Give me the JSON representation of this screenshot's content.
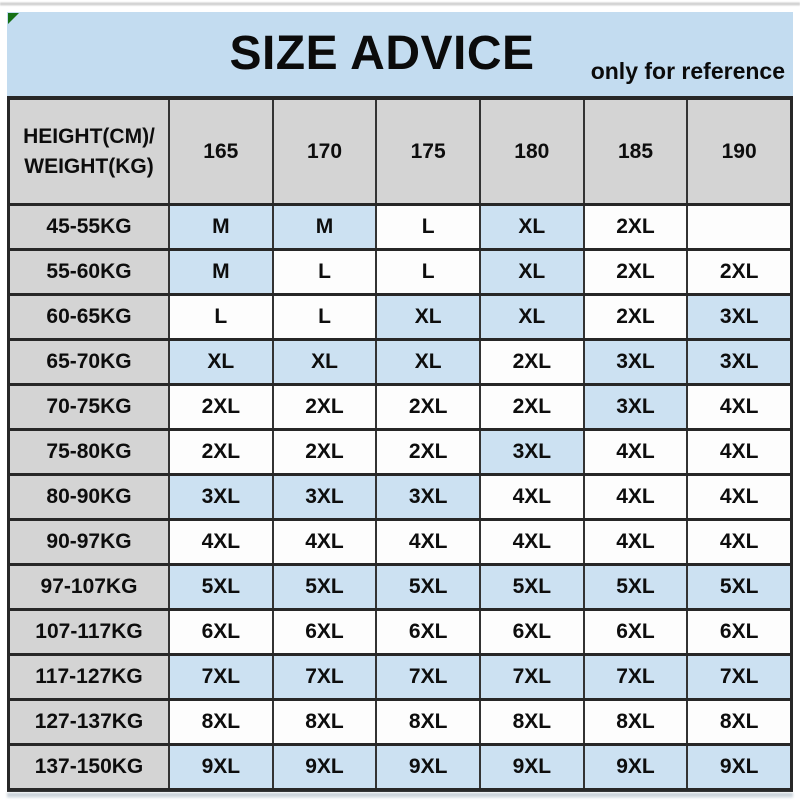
{
  "header": {
    "title": "SIZE ADVICE",
    "note": "only for reference",
    "corner_mark_icon": "green-triangle-mark"
  },
  "table": {
    "corner_label_line1": "HEIGHT(CM)/",
    "corner_label_line2": "WEIGHT(KG)",
    "columns": [
      "165",
      "170",
      "175",
      "180",
      "185",
      "190"
    ],
    "rows": [
      {
        "label": "45-55KG",
        "cells": [
          {
            "v": "M",
            "hl": true
          },
          {
            "v": "M",
            "hl": true
          },
          {
            "v": "L",
            "hl": false
          },
          {
            "v": "XL",
            "hl": true
          },
          {
            "v": "2XL",
            "hl": false
          },
          {
            "v": "",
            "hl": false
          }
        ]
      },
      {
        "label": "55-60KG",
        "cells": [
          {
            "v": "M",
            "hl": true
          },
          {
            "v": "L",
            "hl": false
          },
          {
            "v": "L",
            "hl": false
          },
          {
            "v": "XL",
            "hl": true
          },
          {
            "v": "2XL",
            "hl": false
          },
          {
            "v": "2XL",
            "hl": false
          }
        ]
      },
      {
        "label": "60-65KG",
        "cells": [
          {
            "v": "L",
            "hl": false
          },
          {
            "v": "L",
            "hl": false
          },
          {
            "v": "XL",
            "hl": true
          },
          {
            "v": "XL",
            "hl": true
          },
          {
            "v": "2XL",
            "hl": false
          },
          {
            "v": "3XL",
            "hl": true
          }
        ]
      },
      {
        "label": "65-70KG",
        "cells": [
          {
            "v": "XL",
            "hl": true
          },
          {
            "v": "XL",
            "hl": true
          },
          {
            "v": "XL",
            "hl": true
          },
          {
            "v": "2XL",
            "hl": false
          },
          {
            "v": "3XL",
            "hl": true
          },
          {
            "v": "3XL",
            "hl": true
          }
        ]
      },
      {
        "label": "70-75KG",
        "cells": [
          {
            "v": "2XL",
            "hl": false
          },
          {
            "v": "2XL",
            "hl": false
          },
          {
            "v": "2XL",
            "hl": false
          },
          {
            "v": "2XL",
            "hl": false
          },
          {
            "v": "3XL",
            "hl": true
          },
          {
            "v": "4XL",
            "hl": false
          }
        ]
      },
      {
        "label": "75-80KG",
        "cells": [
          {
            "v": "2XL",
            "hl": false
          },
          {
            "v": "2XL",
            "hl": false
          },
          {
            "v": "2XL",
            "hl": false
          },
          {
            "v": "3XL",
            "hl": true
          },
          {
            "v": "4XL",
            "hl": false
          },
          {
            "v": "4XL",
            "hl": false
          }
        ]
      },
      {
        "label": "80-90KG",
        "cells": [
          {
            "v": "3XL",
            "hl": true
          },
          {
            "v": "3XL",
            "hl": true
          },
          {
            "v": "3XL",
            "hl": true
          },
          {
            "v": "4XL",
            "hl": false
          },
          {
            "v": "4XL",
            "hl": false
          },
          {
            "v": "4XL",
            "hl": false
          }
        ]
      },
      {
        "label": "90-97KG",
        "cells": [
          {
            "v": "4XL",
            "hl": false
          },
          {
            "v": "4XL",
            "hl": false
          },
          {
            "v": "4XL",
            "hl": false
          },
          {
            "v": "4XL",
            "hl": false
          },
          {
            "v": "4XL",
            "hl": false
          },
          {
            "v": "4XL",
            "hl": false
          }
        ]
      },
      {
        "label": "97-107KG",
        "cells": [
          {
            "v": "5XL",
            "hl": true
          },
          {
            "v": "5XL",
            "hl": true
          },
          {
            "v": "5XL",
            "hl": true
          },
          {
            "v": "5XL",
            "hl": true
          },
          {
            "v": "5XL",
            "hl": true
          },
          {
            "v": "5XL",
            "hl": true
          }
        ]
      },
      {
        "label": "107-117KG",
        "cells": [
          {
            "v": "6XL",
            "hl": false
          },
          {
            "v": "6XL",
            "hl": false
          },
          {
            "v": "6XL",
            "hl": false
          },
          {
            "v": "6XL",
            "hl": false
          },
          {
            "v": "6XL",
            "hl": false
          },
          {
            "v": "6XL",
            "hl": false
          }
        ]
      },
      {
        "label": "117-127KG",
        "cells": [
          {
            "v": "7XL",
            "hl": true
          },
          {
            "v": "7XL",
            "hl": true
          },
          {
            "v": "7XL",
            "hl": true
          },
          {
            "v": "7XL",
            "hl": true
          },
          {
            "v": "7XL",
            "hl": true
          },
          {
            "v": "7XL",
            "hl": true
          }
        ]
      },
      {
        "label": "127-137KG",
        "cells": [
          {
            "v": "8XL",
            "hl": false
          },
          {
            "v": "8XL",
            "hl": false
          },
          {
            "v": "8XL",
            "hl": false
          },
          {
            "v": "8XL",
            "hl": false
          },
          {
            "v": "8XL",
            "hl": false
          },
          {
            "v": "8XL",
            "hl": false
          }
        ]
      },
      {
        "label": "137-150KG",
        "cells": [
          {
            "v": "9XL",
            "hl": true
          },
          {
            "v": "9XL",
            "hl": true
          },
          {
            "v": "9XL",
            "hl": true
          },
          {
            "v": "9XL",
            "hl": true
          },
          {
            "v": "9XL",
            "hl": true
          },
          {
            "v": "9XL",
            "hl": true
          }
        ]
      }
    ]
  },
  "colors": {
    "band_blue": "#c3dcf0",
    "cell_highlight_blue": "#cce1f2",
    "header_gray": "#d4d4d4",
    "border_dark": "#272727",
    "corner_mark_green": "#156f15",
    "text": "#0d0d0d"
  },
  "chart_data": {
    "type": "table",
    "title": "SIZE ADVICE",
    "subtitle": "only for reference",
    "row_header": "HEIGHT(CM)/WEIGHT(KG)",
    "columns_height_cm": [
      165,
      170,
      175,
      180,
      185,
      190
    ],
    "rows": [
      {
        "weight_kg": "45-55KG",
        "sizes": [
          "M",
          "M",
          "L",
          "XL",
          "2XL",
          ""
        ]
      },
      {
        "weight_kg": "55-60KG",
        "sizes": [
          "M",
          "L",
          "L",
          "XL",
          "2XL",
          "2XL"
        ]
      },
      {
        "weight_kg": "60-65KG",
        "sizes": [
          "L",
          "L",
          "XL",
          "XL",
          "2XL",
          "3XL"
        ]
      },
      {
        "weight_kg": "65-70KG",
        "sizes": [
          "XL",
          "XL",
          "XL",
          "2XL",
          "3XL",
          "3XL"
        ]
      },
      {
        "weight_kg": "70-75KG",
        "sizes": [
          "2XL",
          "2XL",
          "2XL",
          "2XL",
          "3XL",
          "4XL"
        ]
      },
      {
        "weight_kg": "75-80KG",
        "sizes": [
          "2XL",
          "2XL",
          "2XL",
          "3XL",
          "4XL",
          "4XL"
        ]
      },
      {
        "weight_kg": "80-90KG",
        "sizes": [
          "3XL",
          "3XL",
          "3XL",
          "4XL",
          "4XL",
          "4XL"
        ]
      },
      {
        "weight_kg": "90-97KG",
        "sizes": [
          "4XL",
          "4XL",
          "4XL",
          "4XL",
          "4XL",
          "4XL"
        ]
      },
      {
        "weight_kg": "97-107KG",
        "sizes": [
          "5XL",
          "5XL",
          "5XL",
          "5XL",
          "5XL",
          "5XL"
        ]
      },
      {
        "weight_kg": "107-117KG",
        "sizes": [
          "6XL",
          "6XL",
          "6XL",
          "6XL",
          "6XL",
          "6XL"
        ]
      },
      {
        "weight_kg": "117-127KG",
        "sizes": [
          "7XL",
          "7XL",
          "7XL",
          "7XL",
          "7XL",
          "7XL"
        ]
      },
      {
        "weight_kg": "127-137KG",
        "sizes": [
          "8XL",
          "8XL",
          "8XL",
          "8XL",
          "8XL",
          "8XL"
        ]
      },
      {
        "weight_kg": "137-150KG",
        "sizes": [
          "9XL",
          "9XL",
          "9XL",
          "9XL",
          "9XL",
          "9XL"
        ]
      }
    ],
    "layout_hints": {
      "highlight_color_meaning": "light-blue shaded size cells",
      "grid": "on"
    }
  }
}
